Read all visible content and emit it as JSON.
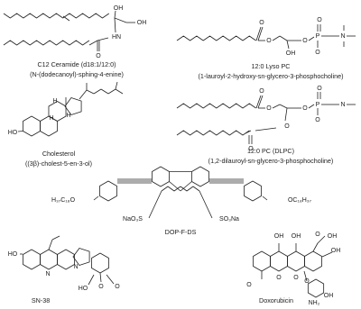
{
  "structures": [
    {
      "name": "C12 Ceramide (d18:1/12:0)",
      "subtitle": "(N-(dodecanoyl)-sphing-4-enine)",
      "atoms": [
        "OH",
        "OH",
        "HN",
        "O"
      ]
    },
    {
      "name": "12:0 Lyso PC",
      "subtitle": "(1-lauroyl-2-hydroxy-sn-glycero-3-phosphocholine)",
      "atoms": [
        "O",
        "O",
        "OH",
        "O",
        "P",
        "O",
        "O",
        "N"
      ]
    },
    {
      "name": "Cholesterol",
      "subtitle": "((3β)-cholest-5-en-3-ol)",
      "atoms": [
        "HO",
        "H",
        "H",
        "H"
      ]
    },
    {
      "name": "12:0 PC (DLPC)",
      "subtitle": "(1,2-dilauroyl-sn-glycero-3-phosphocholine)",
      "atoms": [
        "O",
        "O",
        "O",
        "O",
        "O",
        "P",
        "O",
        "O",
        "N"
      ]
    },
    {
      "name": "DOP-F-DS",
      "atoms": [
        "H₃₇C₁₈O",
        "NaO₃S",
        "SO₃Na",
        "OC₁₈H₃₇"
      ]
    },
    {
      "name": "SN-38",
      "atoms": [
        "HO",
        "N",
        "N",
        "O",
        "HO",
        "O"
      ]
    },
    {
      "name": "Doxorubicin",
      "atoms": [
        "O",
        "OH",
        "O",
        "OH",
        "O",
        "O",
        "OH",
        "OH",
        "O",
        "NH₂",
        "OH"
      ]
    }
  ]
}
